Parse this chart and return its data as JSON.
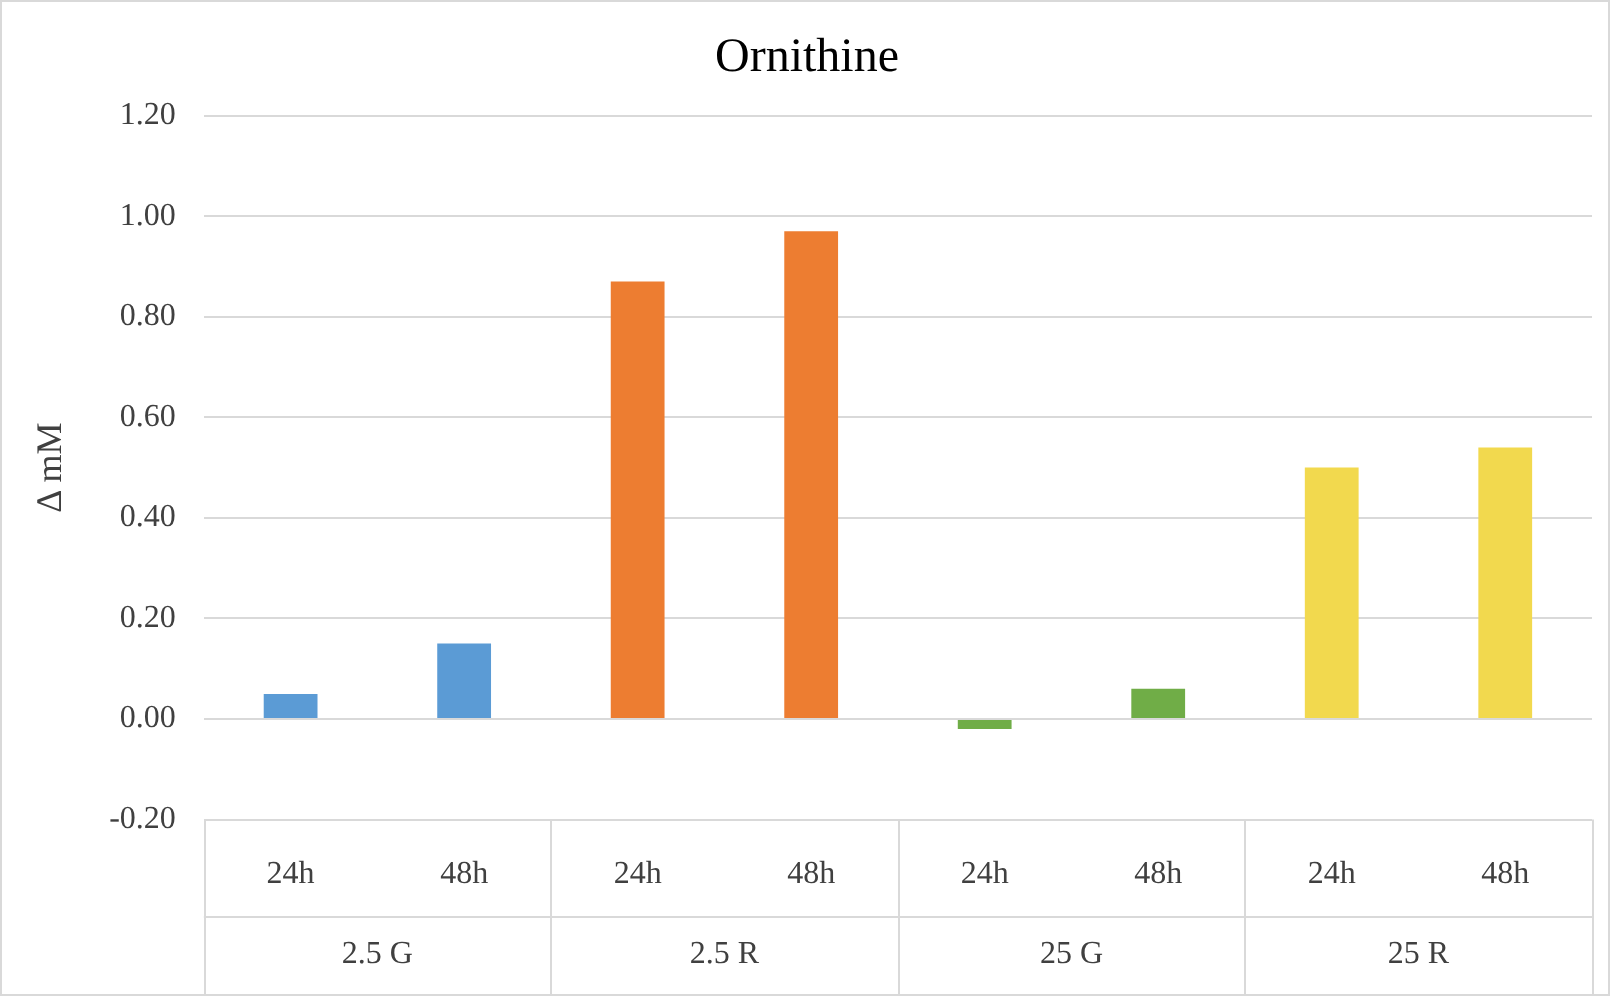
{
  "chart_data": {
    "type": "bar",
    "title": "Ornithine",
    "ylabel": "Δ mM",
    "categories": [
      "24h",
      "48h",
      "24h",
      "48h",
      "24h",
      "48h",
      "24h",
      "48h"
    ],
    "values": [
      0.05,
      0.15,
      0.87,
      0.97,
      -0.02,
      0.06,
      0.5,
      0.54
    ],
    "colors": [
      "#5b9bd5",
      "#5b9bd5",
      "#ed7d31",
      "#ed7d31",
      "#70ad47",
      "#70ad47",
      "#f2d94e",
      "#f2d94e"
    ],
    "ylim": [
      -0.2,
      1.2
    ],
    "yticks": [
      {
        "value": -0.2,
        "label": "-0.20"
      },
      {
        "value": 0,
        "label": "0.00"
      },
      {
        "value": 0.2,
        "label": "0.20"
      },
      {
        "value": 0.4,
        "label": "0.40"
      },
      {
        "value": 0.6,
        "label": "0.60"
      },
      {
        "value": 0.8,
        "label": "0.80"
      },
      {
        "value": 1,
        "label": "1.00"
      },
      {
        "value": 1.2,
        "label": "1.20"
      }
    ],
    "grid": "y",
    "legend": false,
    "annotations": [
      {
        "text": "2.5 G"
      },
      {
        "text": "2.5 R"
      },
      {
        "text": "25 G"
      },
      {
        "text": "25 R"
      }
    ]
  }
}
